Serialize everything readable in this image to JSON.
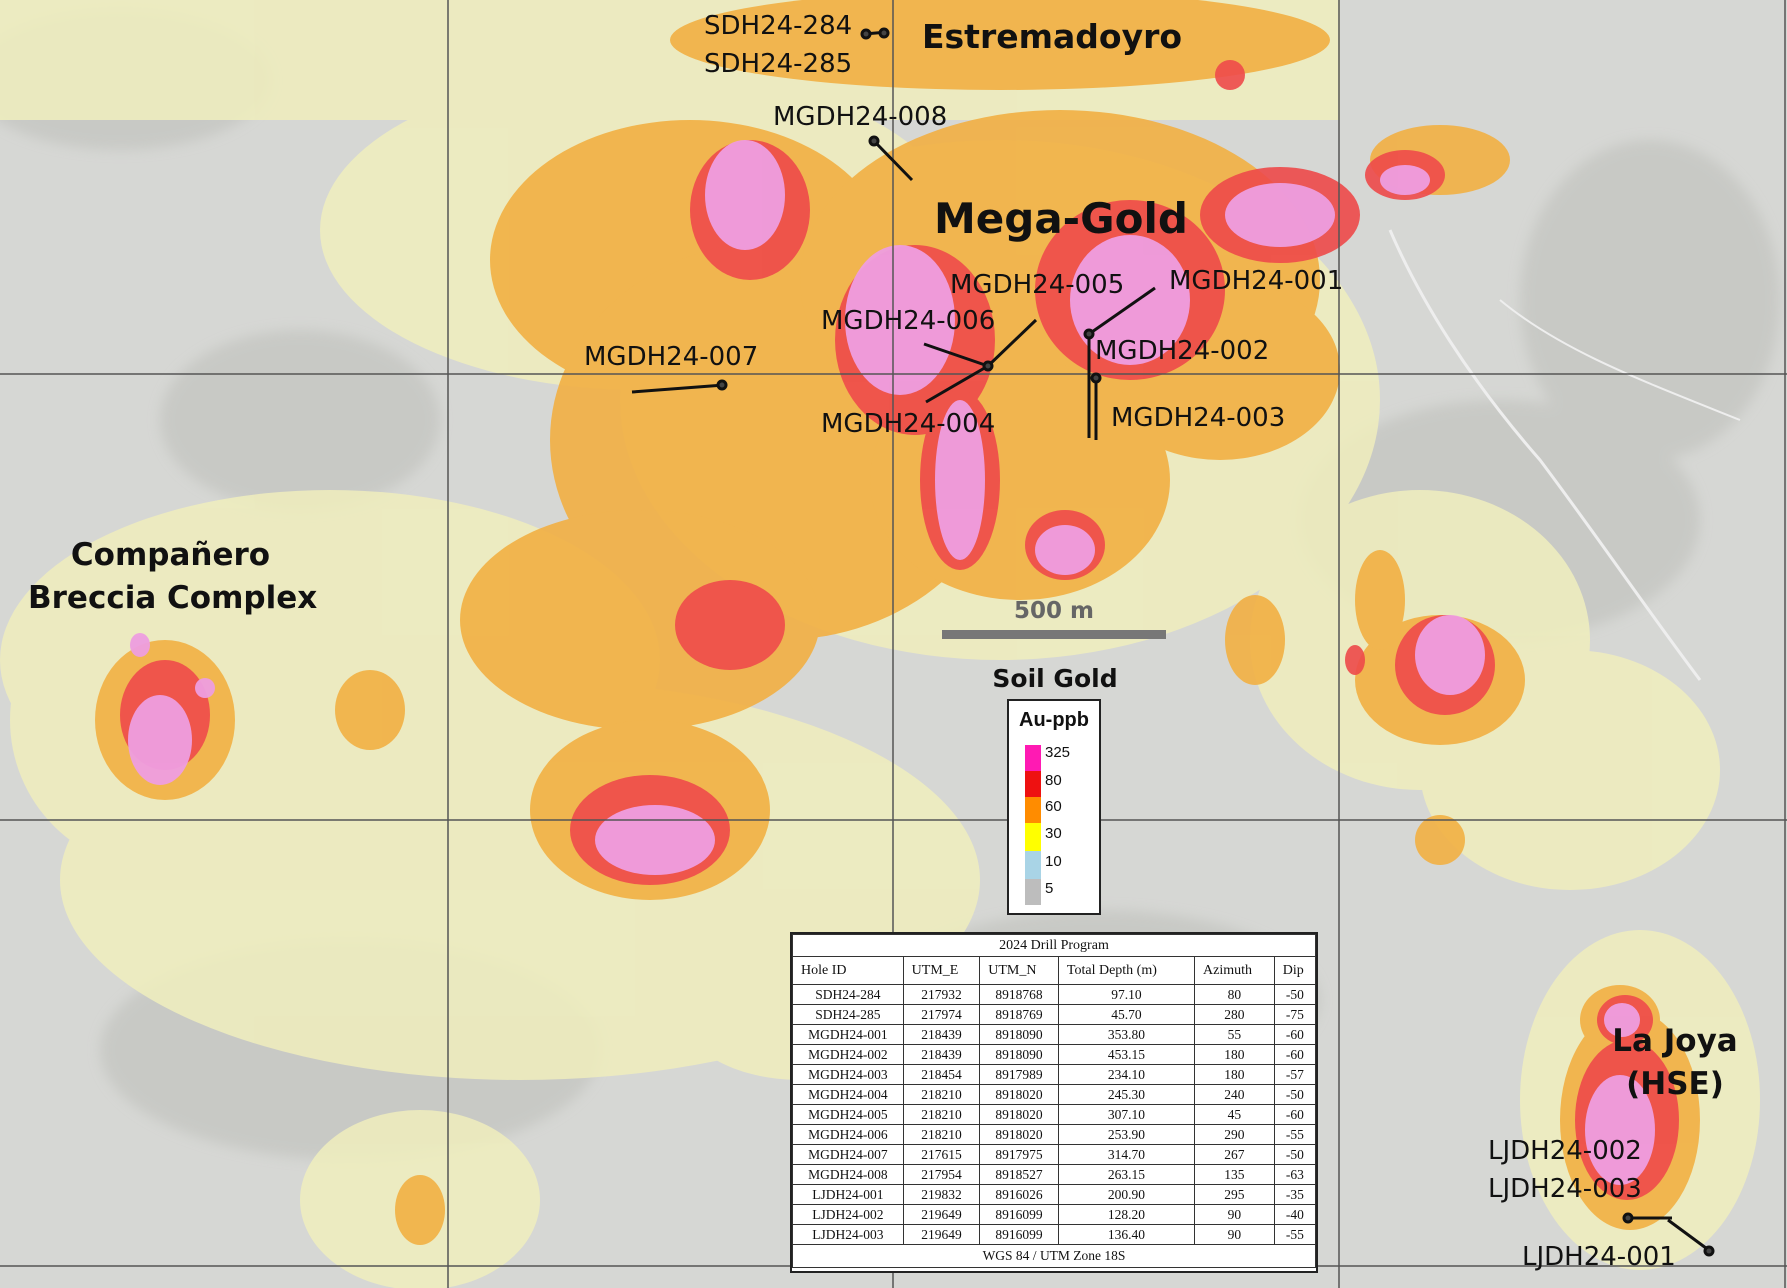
{
  "map": {
    "title": "Soil Gold",
    "scale_bar": {
      "label": "500 m"
    },
    "areas": [
      {
        "id": "estremadoyro",
        "name": "Estremadoyro"
      },
      {
        "id": "mega-gold",
        "name": "Mega-Gold"
      },
      {
        "id": "companero",
        "line1": "Compañero",
        "line2": "Breccia Complex"
      },
      {
        "id": "la-joya",
        "line1": "La Joya",
        "line2": "(HSE)"
      }
    ],
    "drill_labels": {
      "sdh284": "SDH24-284",
      "sdh285": "SDH24-285",
      "mgdh008": "MGDH24-008",
      "mgdh005": "MGDH24-005",
      "mgdh001": "MGDH24-001",
      "mgdh006": "MGDH24-006",
      "mgdh002": "MGDH24-002",
      "mgdh007": "MGDH24-007",
      "mgdh003": "MGDH24-003",
      "mgdh004": "MGDH24-004",
      "ljdh002": "LJDH24-002",
      "ljdh003": "LJDH24-003",
      "ljdh001": "LJDH24-001"
    }
  },
  "legend": {
    "units": "Au-ppb",
    "classes": [
      {
        "label": "325",
        "color": "#ff1ab3"
      },
      {
        "label": "80",
        "color": "#ee1111"
      },
      {
        "label": "60",
        "color": "#ff8c00"
      },
      {
        "label": "30",
        "color": "#ffff00"
      },
      {
        "label": "10",
        "color": "#a9d4e6"
      },
      {
        "label": "5",
        "color": "#bdbdbd"
      }
    ]
  },
  "drill_table": {
    "title": "2024 Drill Program",
    "columns": [
      "Hole ID",
      "UTM_E",
      "UTM_N",
      "Total Depth (m)",
      "Azimuth",
      "Dip"
    ],
    "rows": [
      [
        "SDH24-284",
        "217932",
        "8918768",
        "97.10",
        "80",
        "-50"
      ],
      [
        "SDH24-285",
        "217974",
        "8918769",
        "45.70",
        "280",
        "-75"
      ],
      [
        "MGDH24-001",
        "218439",
        "8918090",
        "353.80",
        "55",
        "-60"
      ],
      [
        "MGDH24-002",
        "218439",
        "8918090",
        "453.15",
        "180",
        "-60"
      ],
      [
        "MGDH24-003",
        "218454",
        "8917989",
        "234.10",
        "180",
        "-57"
      ],
      [
        "MGDH24-004",
        "218210",
        "8918020",
        "245.30",
        "240",
        "-50"
      ],
      [
        "MGDH24-005",
        "218210",
        "8918020",
        "307.10",
        "45",
        "-60"
      ],
      [
        "MGDH24-006",
        "218210",
        "8918020",
        "253.90",
        "290",
        "-55"
      ],
      [
        "MGDH24-007",
        "217615",
        "8917975",
        "314.70",
        "267",
        "-50"
      ],
      [
        "MGDH24-008",
        "217954",
        "8918527",
        "263.15",
        "135",
        "-63"
      ],
      [
        "LJDH24-001",
        "219832",
        "8916026",
        "200.90",
        "295",
        "-35"
      ],
      [
        "LJDH24-002",
        "219649",
        "8916099",
        "128.20",
        "90",
        "-40"
      ],
      [
        "LJDH24-003",
        "219649",
        "8916099",
        "136.40",
        "90",
        "-55"
      ]
    ],
    "footer": "WGS 84 / UTM Zone 18S"
  }
}
